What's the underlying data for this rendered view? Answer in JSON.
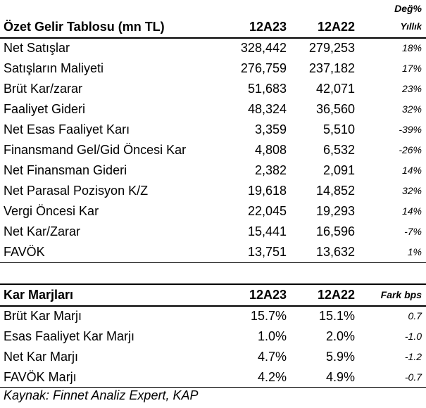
{
  "income": {
    "title": "Özet Gelir Tablosu (mn TL)",
    "col1": "12A23",
    "col2": "12A22",
    "change_top": "Değ%",
    "change_bottom": "Yıllık",
    "rows": [
      {
        "label": "Net Satışlar",
        "v1": "328,442",
        "v2": "279,253",
        "chg": "18%"
      },
      {
        "label": "Satışların Maliyeti",
        "v1": "276,759",
        "v2": "237,182",
        "chg": "17%"
      },
      {
        "label": "Brüt Kar/zarar",
        "v1": "51,683",
        "v2": "42,071",
        "chg": "23%"
      },
      {
        "label": "Faaliyet Gideri",
        "v1": "48,324",
        "v2": "36,560",
        "chg": "32%"
      },
      {
        "label": "Net Esas Faaliyet Karı",
        "v1": "3,359",
        "v2": "5,510",
        "chg": "-39%"
      },
      {
        "label": "Finansmand Gel/Gid Öncesi Kar",
        "v1": "4,808",
        "v2": "6,532",
        "chg": "-26%"
      },
      {
        "label": "Net Finansman Gideri",
        "v1": "2,382",
        "v2": "2,091",
        "chg": "14%"
      },
      {
        "label": "Net Parasal Pozisyon K/Z",
        "v1": "19,618",
        "v2": "14,852",
        "chg": "32%"
      },
      {
        "label": "Vergi Öncesi Kar",
        "v1": "22,045",
        "v2": "19,293",
        "chg": "14%"
      },
      {
        "label": "Net Kar/Zarar",
        "v1": "15,441",
        "v2": "16,596",
        "chg": "-7%"
      },
      {
        "label": "FAVÖK",
        "v1": "13,751",
        "v2": "13,632",
        "chg": "1%"
      }
    ]
  },
  "margins": {
    "title": "Kar Marjları",
    "col1": "12A23",
    "col2": "12A22",
    "change": "Fark bps",
    "rows": [
      {
        "label": "Brüt Kar Marjı",
        "v1": "15.7%",
        "v2": "15.1%",
        "chg": "0.7"
      },
      {
        "label": "Esas Faaliyet Kar Marjı",
        "v1": "1.0%",
        "v2": "2.0%",
        "chg": "-1.0"
      },
      {
        "label": "Net Kar Marjı",
        "v1": "4.7%",
        "v2": "5.9%",
        "chg": "-1.2"
      },
      {
        "label": "FAVÖK Marjı",
        "v1": "4.2%",
        "v2": "4.9%",
        "chg": "-0.7"
      }
    ]
  },
  "source": "Kaynak: Finnet Analiz Expert, KAP"
}
